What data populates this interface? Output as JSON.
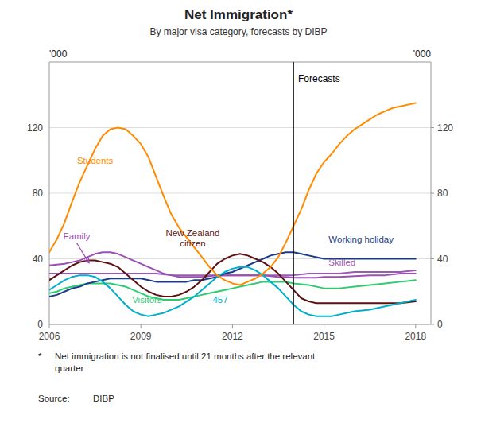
{
  "chart_data": {
    "type": "line",
    "title": "Net Immigration*",
    "subtitle": "By major visa category, forecasts by DIBP",
    "y_label": "'000",
    "y2_label": "'000",
    "xlim": [
      2006.0,
      2018.5
    ],
    "xticks": [
      2006,
      2009,
      2012,
      2015,
      2018
    ],
    "ylim": [
      0,
      160
    ],
    "yticks": [
      0,
      40,
      80,
      120
    ],
    "y2lim": [
      0,
      160
    ],
    "y2ticks": [
      0,
      40,
      80,
      120
    ],
    "grid": true,
    "forecast_line": 2014.0,
    "annotations": [
      {
        "text": "Forecasts",
        "x": 2014.15,
        "y": 148
      }
    ],
    "footnote_star": "*",
    "footnote": "Net immigration is not finalised until 21 months after the relevant\nquarter",
    "source_label": "Source:",
    "source": "DIBP",
    "series": [
      {
        "name": "Skilled",
        "color": "#9B59B6",
        "label_x": 2015.15,
        "label_y": 36,
        "x": [
          2006.0,
          2006.5,
          2007.0,
          2007.5,
          2008.0,
          2008.5,
          2009.0,
          2009.5,
          2010.0,
          2010.5,
          2011.0,
          2011.5,
          2012.0,
          2012.5,
          2013.0,
          2013.5,
          2014.0,
          2014.5,
          2015.0,
          2015.5,
          2016.0,
          2016.5,
          2017.0,
          2017.5,
          2018.0
        ],
        "values": [
          31,
          31,
          31,
          31,
          31,
          31,
          31,
          31,
          30,
          30,
          30,
          30,
          30,
          30,
          30,
          30,
          30,
          31,
          31,
          31,
          32,
          32,
          32,
          32,
          33
        ]
      },
      {
        "name": "Family",
        "color": "#9B4FB5",
        "label_x": 2006.9,
        "label_y": 52,
        "arrow_x": 2007.3,
        "arrow_y": 37.5,
        "x": [
          2006.0,
          2006.25,
          2006.5,
          2006.75,
          2007.0,
          2007.25,
          2007.5,
          2007.75,
          2008.0,
          2008.25,
          2008.5,
          2008.75,
          2009.0,
          2009.25,
          2009.5,
          2009.75,
          2010.0,
          2010.25,
          2010.5,
          2010.75,
          2011.0,
          2011.25,
          2011.5,
          2011.75,
          2012.0,
          2012.25,
          2012.5,
          2012.75,
          2013.0,
          2013.25,
          2013.5,
          2013.75,
          2014.0,
          2014.25,
          2014.5,
          2014.75,
          2015.0,
          2015.5,
          2016.0,
          2016.5,
          2017.0,
          2017.5,
          2018.0
        ],
        "values": [
          36,
          36.5,
          37,
          38,
          39,
          41,
          43,
          44,
          44,
          43,
          41,
          39,
          37,
          35,
          33,
          31,
          30,
          29,
          29,
          29,
          29,
          29.5,
          30,
          30,
          30,
          30,
          30,
          30,
          30,
          29.5,
          29,
          29,
          28.5,
          28.5,
          28.5,
          28.5,
          29,
          29,
          29.5,
          30,
          30,
          31,
          31
        ]
      },
      {
        "name": "Visitors",
        "color": "#2ECC71",
        "label_x": 2009.2,
        "label_y": 13,
        "x": [
          2006.0,
          2006.25,
          2006.5,
          2006.75,
          2007.0,
          2007.25,
          2007.5,
          2007.75,
          2008.0,
          2008.25,
          2008.5,
          2008.75,
          2009.0,
          2009.25,
          2009.5,
          2009.75,
          2010.0,
          2010.25,
          2010.5,
          2010.75,
          2011.0,
          2011.25,
          2011.5,
          2011.75,
          2012.0,
          2012.25,
          2012.5,
          2012.75,
          2013.0,
          2013.25,
          2013.5,
          2013.75,
          2014.0,
          2014.5,
          2015.0,
          2015.5,
          2016.0,
          2016.5,
          2017.0,
          2017.5,
          2018.0
        ],
        "values": [
          19,
          20,
          22,
          23,
          24,
          25,
          25,
          25,
          25,
          24,
          23,
          21,
          19,
          17,
          16,
          15,
          15,
          15,
          16,
          17,
          18,
          19,
          20,
          21,
          22,
          23,
          24,
          25,
          26,
          26,
          26,
          26,
          25,
          24,
          22,
          22,
          23,
          24,
          25,
          26,
          27
        ]
      },
      {
        "name": "Working holiday",
        "color": "#1B3C8C",
        "label_x": 2015.15,
        "label_y": 50,
        "x": [
          2006.0,
          2006.25,
          2006.5,
          2006.75,
          2007.0,
          2007.25,
          2007.5,
          2007.75,
          2008.0,
          2008.25,
          2008.5,
          2008.75,
          2009.0,
          2009.25,
          2009.5,
          2009.75,
          2010.0,
          2010.25,
          2010.5,
          2010.75,
          2011.0,
          2011.25,
          2011.5,
          2011.75,
          2012.0,
          2012.25,
          2012.5,
          2012.75,
          2013.0,
          2013.25,
          2013.5,
          2013.75,
          2014.0,
          2014.25,
          2014.5,
          2014.75,
          2015.0,
          2015.25,
          2015.5,
          2015.75,
          2016.0,
          2016.25,
          2016.5,
          2016.75,
          2017.0,
          2017.5,
          2018.0
        ],
        "values": [
          17,
          18,
          20,
          22,
          23,
          25,
          26,
          27,
          28,
          28,
          28,
          28,
          28,
          27,
          26,
          26,
          26,
          26,
          26,
          27,
          27,
          28,
          29,
          31,
          32,
          34,
          36,
          38,
          40,
          42,
          43,
          44,
          44,
          43,
          42,
          41,
          40,
          40,
          40,
          40,
          40,
          40,
          40,
          40,
          40,
          40,
          40
        ]
      },
      {
        "name": "New Zealand\ncitizen",
        "color": "#5C1010",
        "label_x": 2010.7,
        "label_y": 54,
        "x": [
          2006.0,
          2006.25,
          2006.5,
          2006.75,
          2007.0,
          2007.25,
          2007.5,
          2007.75,
          2008.0,
          2008.25,
          2008.5,
          2008.75,
          2009.0,
          2009.25,
          2009.5,
          2009.75,
          2010.0,
          2010.25,
          2010.5,
          2010.75,
          2011.0,
          2011.25,
          2011.5,
          2011.75,
          2012.0,
          2012.25,
          2012.5,
          2012.75,
          2013.0,
          2013.25,
          2013.5,
          2013.75,
          2014.0,
          2014.25,
          2014.5,
          2014.75,
          2015.0,
          2015.25,
          2015.5,
          2015.75,
          2016.0,
          2016.25,
          2016.5,
          2016.75,
          2017.0,
          2017.5,
          2018.0
        ],
        "values": [
          27,
          30,
          33,
          36,
          38,
          39,
          39,
          38,
          37,
          35,
          31,
          27,
          23,
          20,
          18,
          17,
          17,
          18,
          20,
          23,
          27,
          32,
          37,
          40,
          42,
          43,
          42,
          40,
          38,
          35,
          31,
          26,
          21,
          16,
          14,
          13,
          13,
          13,
          13,
          13,
          13,
          13,
          13,
          13,
          13,
          13,
          14
        ]
      },
      {
        "name": "457",
        "color": "#00AECC",
        "label_x": 2011.6,
        "label_y": 13,
        "x": [
          2006.0,
          2006.25,
          2006.5,
          2006.75,
          2007.0,
          2007.25,
          2007.5,
          2007.75,
          2008.0,
          2008.25,
          2008.5,
          2008.75,
          2009.0,
          2009.25,
          2009.5,
          2009.75,
          2010.0,
          2010.25,
          2010.5,
          2010.75,
          2011.0,
          2011.25,
          2011.5,
          2011.75,
          2012.0,
          2012.25,
          2012.5,
          2012.75,
          2013.0,
          2013.25,
          2013.5,
          2013.75,
          2014.0,
          2014.25,
          2014.5,
          2014.75,
          2015.0,
          2015.25,
          2015.5,
          2015.75,
          2016.0,
          2016.5,
          2017.0,
          2017.5,
          2018.0
        ],
        "values": [
          21,
          24,
          27,
          29,
          30,
          30,
          29,
          26,
          22,
          17,
          12,
          8,
          6,
          5,
          6,
          7,
          9,
          11,
          14,
          17,
          21,
          25,
          29,
          32,
          34,
          35,
          35,
          33,
          30,
          26,
          22,
          17,
          12,
          8,
          6,
          5,
          5,
          5,
          6,
          7,
          8,
          9,
          11,
          13,
          15
        ]
      },
      {
        "name": "Students",
        "color": "#FF8C00",
        "label_x": 2007.5,
        "label_y": 98,
        "x": [
          2006.0,
          2006.25,
          2006.5,
          2006.75,
          2007.0,
          2007.25,
          2007.5,
          2007.75,
          2008.0,
          2008.25,
          2008.5,
          2008.75,
          2009.0,
          2009.25,
          2009.5,
          2009.75,
          2010.0,
          2010.25,
          2010.5,
          2010.75,
          2011.0,
          2011.25,
          2011.5,
          2011.75,
          2012.0,
          2012.25,
          2012.5,
          2012.75,
          2013.0,
          2013.25,
          2013.5,
          2013.75,
          2014.0,
          2014.25,
          2014.5,
          2014.75,
          2015.0,
          2015.25,
          2015.5,
          2015.75,
          2016.0,
          2016.25,
          2016.5,
          2016.75,
          2017.0,
          2017.25,
          2017.5,
          2017.75,
          2018.0
        ],
        "values": [
          44,
          52,
          62,
          75,
          87,
          97,
          107,
          115,
          119,
          120,
          119,
          115,
          110,
          102,
          90,
          78,
          67,
          59,
          53,
          47,
          41,
          35,
          30,
          27,
          25,
          24,
          26,
          28,
          31,
          35,
          41,
          50,
          60,
          70,
          82,
          92,
          99,
          104,
          110,
          115,
          119,
          122,
          125,
          128,
          130,
          132,
          133,
          134,
          135
        ]
      }
    ]
  }
}
